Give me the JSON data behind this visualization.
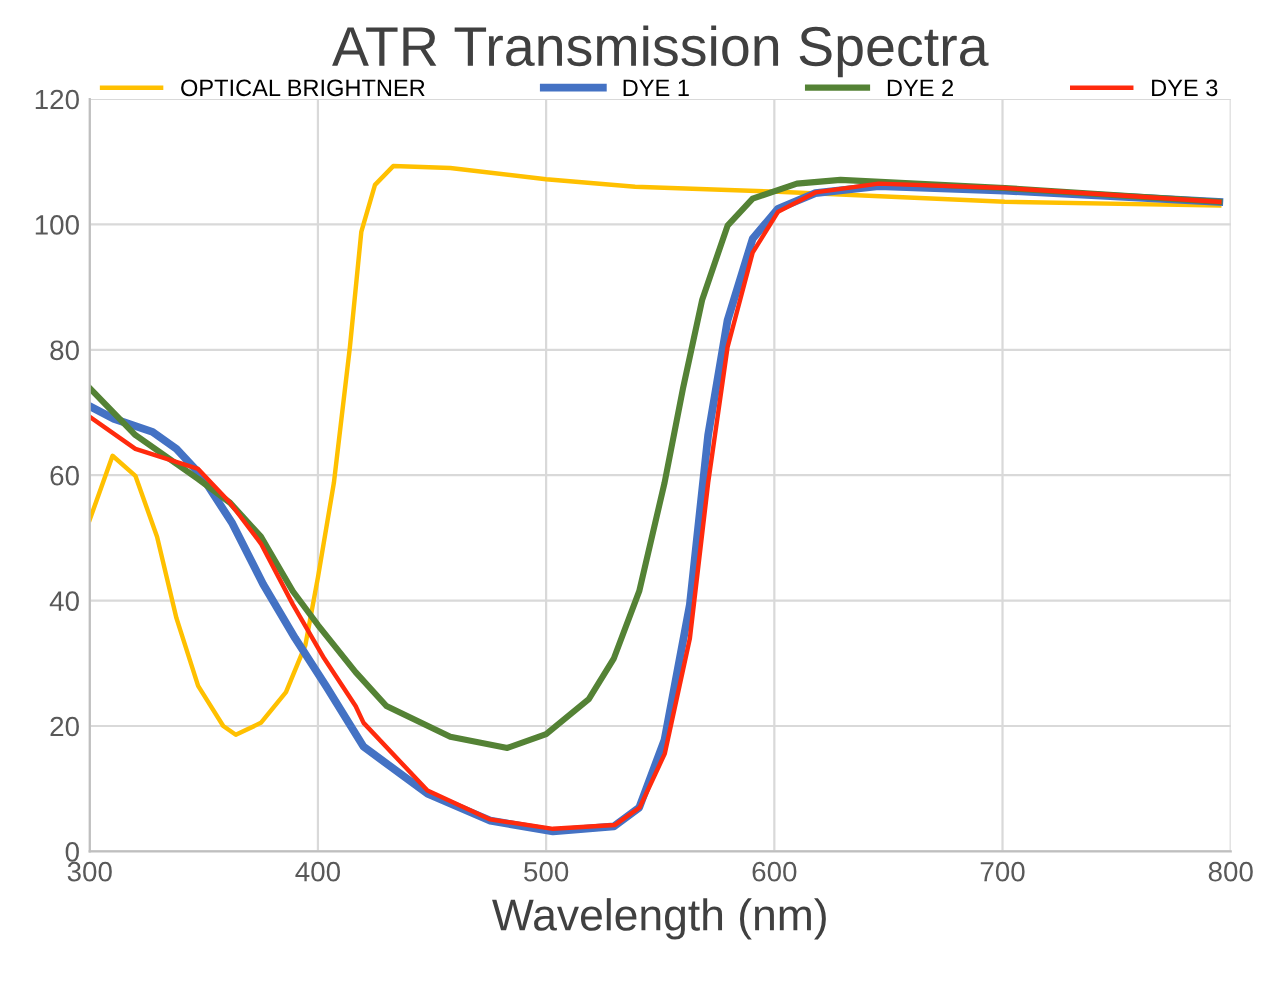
{
  "chart_data": {
    "type": "line",
    "title": "ATR Transmission Spectra",
    "xlabel": "Wavelength (nm)",
    "xlim": [
      300,
      800
    ],
    "xticks": [
      300,
      400,
      500,
      600,
      700,
      800
    ],
    "ylim": [
      0,
      120
    ],
    "yticks": [
      0,
      20,
      40,
      60,
      80,
      100,
      120
    ],
    "grid": true,
    "legend": "top",
    "line_style": "solid",
    "series": [
      {
        "name": "OPTICAL BRIGHTNER",
        "color": "#ffc000",
        "x": [
          300,
          310,
          320,
          329.5,
          338,
          347.5,
          358.5,
          364,
          375,
          386,
          394.5,
          400,
          407,
          414,
          419,
          425,
          433,
          458,
          500,
          539,
          601.6,
          701,
          795
        ],
        "values": [
          52.9,
          63.1,
          59.9,
          50.2,
          37.2,
          26.4,
          20,
          18.6,
          20.5,
          25.4,
          32.9,
          43.7,
          58.8,
          80.4,
          98.8,
          106.3,
          109.3,
          109,
          107.2,
          106,
          105.2,
          103.6,
          103
        ]
      },
      {
        "name": "DYE 1",
        "color": "#4472c4",
        "x": [
          300,
          310.5,
          327.5,
          338,
          349,
          362.5,
          376,
          390,
          403.5,
          420,
          448,
          475.5,
          503,
          529.7,
          540.8,
          551.9,
          563,
          571,
          579.5,
          590.5,
          601.6,
          618,
          645.7,
          701,
          795
        ],
        "values": [
          71,
          69,
          66.9,
          64.2,
          59.9,
          52.3,
          42.6,
          34,
          26.4,
          16.7,
          9.2,
          4.9,
          3.2,
          4,
          7,
          17.8,
          39.4,
          66.4,
          84.7,
          97.7,
          102.5,
          105,
          106.1,
          105.4,
          103.6
        ]
      },
      {
        "name": "DYE 2",
        "color": "#548235",
        "x": [
          300,
          320,
          347.5,
          361.5,
          375,
          389,
          400,
          416.5,
          430,
          458,
          483,
          500,
          518.7,
          529.7,
          540.8,
          551.9,
          560,
          568.4,
          579.5,
          590.5,
          609.9,
          629,
          701,
          795
        ],
        "values": [
          73.9,
          66.4,
          59.4,
          55.6,
          50.2,
          41.5,
          36.1,
          28.6,
          23.2,
          18.3,
          16.5,
          18.7,
          24.3,
          30.8,
          41.5,
          58.8,
          73.9,
          88,
          99.8,
          104.1,
          106.5,
          107.1,
          105.8,
          103.6
        ]
      },
      {
        "name": "DYE 3",
        "color": "#ff2a0d",
        "x": [
          300,
          320,
          347.5,
          361.5,
          375,
          389,
          402.7,
          416.5,
          420,
          448,
          475.5,
          503,
          530,
          541,
          552,
          563,
          571,
          579.5,
          590.5,
          601.6,
          618,
          645.7,
          701,
          795
        ],
        "values": [
          69.3,
          64.2,
          61,
          55.6,
          49.1,
          39.4,
          30.8,
          23.2,
          20.5,
          9.7,
          5.1,
          3.6,
          4.2,
          7,
          15.6,
          34,
          58.8,
          80.4,
          95.5,
          102,
          105.1,
          106.5,
          105.8,
          103.6
        ]
      }
    ]
  }
}
